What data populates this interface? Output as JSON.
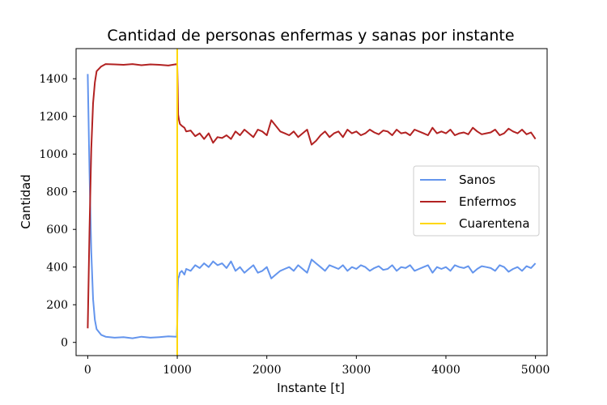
{
  "chart_data": {
    "type": "line",
    "title": "Cantidad de personas enfermas y sanas por instante",
    "xlabel": "Instante [t]",
    "ylabel": "Cantidad",
    "xlim": [
      -130,
      5130
    ],
    "ylim": [
      -70,
      1560
    ],
    "xticks": [
      0,
      1000,
      2000,
      3000,
      4000,
      5000
    ],
    "xtick_labels": [
      "0",
      "1000",
      "2000",
      "3000",
      "4000",
      "5000"
    ],
    "yticks": [
      0,
      200,
      400,
      600,
      800,
      1000,
      1200,
      1400
    ],
    "ytick_labels": [
      "0",
      "200",
      "400",
      "600",
      "800",
      "1000",
      "1200",
      "1400"
    ],
    "grid": false,
    "legend": {
      "placement": "center-right",
      "entries": [
        "Sanos",
        "Enfermos",
        "Cuarentena"
      ]
    },
    "series": [
      {
        "name": "Sanos",
        "color": "#6495ED",
        "x": [
          0,
          20,
          40,
          60,
          80,
          100,
          150,
          200,
          300,
          400,
          500,
          600,
          700,
          800,
          900,
          995,
          1000,
          1005,
          1010,
          1020,
          1030,
          1050,
          1080,
          1100,
          1150,
          1200,
          1250,
          1300,
          1350,
          1400,
          1450,
          1500,
          1550,
          1600,
          1650,
          1700,
          1750,
          1800,
          1850,
          1900,
          1950,
          2000,
          2050,
          2100,
          2150,
          2200,
          2250,
          2300,
          2350,
          2400,
          2450,
          2500,
          2550,
          2600,
          2650,
          2700,
          2750,
          2800,
          2850,
          2900,
          2950,
          3000,
          3050,
          3100,
          3150,
          3200,
          3250,
          3300,
          3350,
          3400,
          3450,
          3500,
          3550,
          3600,
          3650,
          3700,
          3750,
          3800,
          3850,
          3900,
          3950,
          4000,
          4050,
          4100,
          4150,
          4200,
          4250,
          4300,
          4350,
          4400,
          4450,
          4500,
          4550,
          4600,
          4650,
          4700,
          4750,
          4800,
          4850,
          4900,
          4950,
          5000
        ],
        "values": [
          1425,
          900,
          480,
          230,
          120,
          70,
          40,
          30,
          25,
          28,
          22,
          30,
          25,
          28,
          32,
          30,
          100,
          280,
          340,
          350,
          370,
          380,
          360,
          390,
          380,
          410,
          395,
          420,
          400,
          430,
          410,
          420,
          395,
          430,
          380,
          400,
          370,
          390,
          410,
          370,
          380,
          400,
          340,
          360,
          380,
          390,
          400,
          380,
          410,
          390,
          370,
          440,
          420,
          400,
          380,
          410,
          400,
          390,
          410,
          380,
          400,
          390,
          410,
          400,
          380,
          395,
          405,
          385,
          390,
          410,
          380,
          400,
          395,
          410,
          380,
          390,
          400,
          410,
          370,
          400,
          390,
          400,
          380,
          410,
          400,
          395,
          405,
          370,
          390,
          405,
          400,
          395,
          380,
          410,
          400,
          375,
          390,
          400,
          380,
          405,
          395,
          420
        ]
      },
      {
        "name": "Enfermos",
        "color": "#B22222",
        "x": [
          0,
          20,
          40,
          60,
          80,
          100,
          150,
          200,
          300,
          400,
          500,
          600,
          700,
          800,
          900,
          995,
          1000,
          1005,
          1010,
          1020,
          1030,
          1050,
          1080,
          1100,
          1150,
          1200,
          1250,
          1300,
          1350,
          1400,
          1450,
          1500,
          1550,
          1600,
          1650,
          1700,
          1750,
          1800,
          1850,
          1900,
          1950,
          2000,
          2050,
          2100,
          2150,
          2200,
          2250,
          2300,
          2350,
          2400,
          2450,
          2500,
          2550,
          2600,
          2650,
          2700,
          2750,
          2800,
          2850,
          2900,
          2950,
          3000,
          3050,
          3100,
          3150,
          3200,
          3250,
          3300,
          3350,
          3400,
          3450,
          3500,
          3550,
          3600,
          3650,
          3700,
          3750,
          3800,
          3850,
          3900,
          3950,
          4000,
          4050,
          4100,
          4150,
          4200,
          4250,
          4300,
          4350,
          4400,
          4450,
          4500,
          4550,
          4600,
          4650,
          4700,
          4750,
          4800,
          4850,
          4900,
          4950,
          5000
        ],
        "values": [
          75,
          600,
          1030,
          1270,
          1380,
          1440,
          1465,
          1478,
          1476,
          1474,
          1478,
          1472,
          1476,
          1474,
          1470,
          1478,
          1470,
          1350,
          1210,
          1180,
          1160,
          1150,
          1140,
          1120,
          1125,
          1095,
          1110,
          1080,
          1110,
          1060,
          1090,
          1085,
          1100,
          1080,
          1120,
          1100,
          1130,
          1110,
          1090,
          1130,
          1120,
          1100,
          1180,
          1150,
          1120,
          1110,
          1100,
          1120,
          1090,
          1110,
          1130,
          1050,
          1070,
          1100,
          1120,
          1090,
          1110,
          1120,
          1090,
          1130,
          1110,
          1120,
          1100,
          1110,
          1130,
          1115,
          1105,
          1125,
          1120,
          1100,
          1130,
          1110,
          1115,
          1100,
          1130,
          1120,
          1110,
          1100,
          1140,
          1110,
          1120,
          1110,
          1130,
          1100,
          1110,
          1115,
          1105,
          1140,
          1120,
          1105,
          1110,
          1115,
          1130,
          1100,
          1110,
          1135,
          1120,
          1110,
          1130,
          1105,
          1115,
          1080
        ]
      },
      {
        "name": "Cuarentena",
        "color": "#FFD700",
        "x": [
          1000,
          1000
        ],
        "values": [
          -70,
          1560
        ]
      }
    ]
  }
}
